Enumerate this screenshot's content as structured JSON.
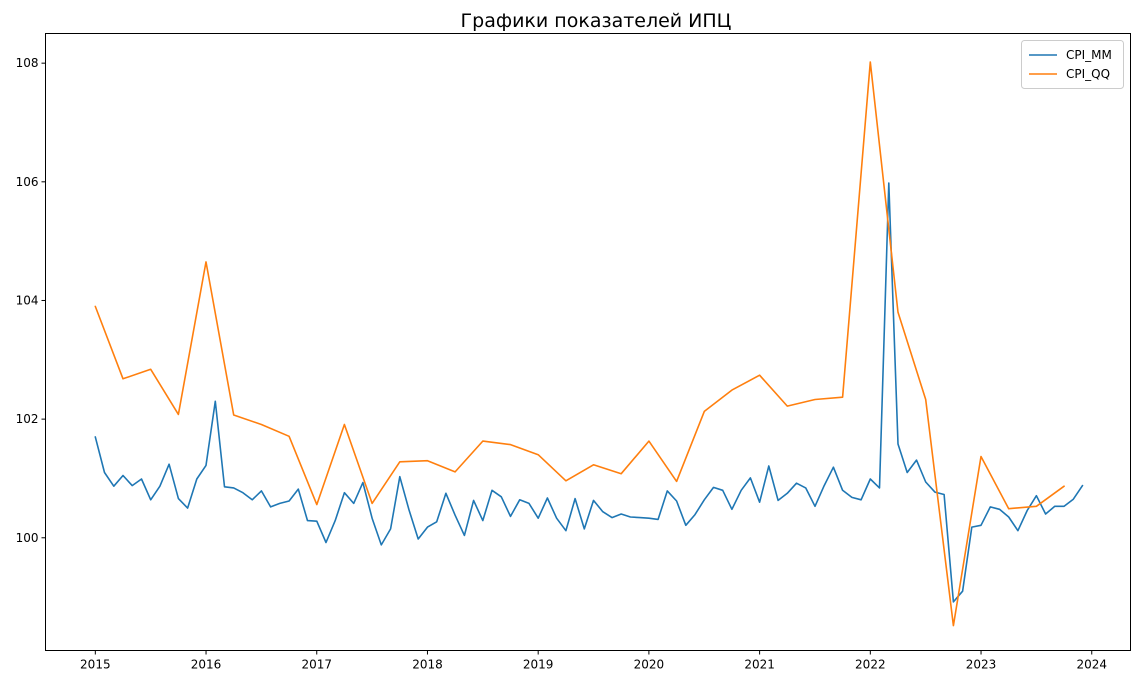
{
  "chart_data": {
    "type": "line",
    "title": "Графики показателей ИПЦ",
    "xlabel": "",
    "ylabel": "",
    "xlim": [
      2014.55,
      2024.35
    ],
    "ylim": [
      98.1,
      108.5
    ],
    "x_ticks": [
      2015,
      2016,
      2017,
      2018,
      2019,
      2020,
      2021,
      2022,
      2023,
      2024
    ],
    "x_tick_labels": [
      "2015",
      "2016",
      "2017",
      "2018",
      "2019",
      "2020",
      "2021",
      "2022",
      "2023",
      "2024"
    ],
    "y_ticks": [
      100,
      102,
      104,
      106,
      108
    ],
    "y_tick_labels": [
      "100",
      "102",
      "104",
      "106",
      "108"
    ],
    "grid": false,
    "legend_position": "top-right",
    "series": [
      {
        "name": "CPI_MM",
        "color": "#1f77b4",
        "x": [
          "2015-01",
          "2015-02",
          "2015-03",
          "2015-04",
          "2015-05",
          "2015-06",
          "2015-07",
          "2015-08",
          "2015-09",
          "2015-10",
          "2015-11",
          "2015-12",
          "2016-01",
          "2016-02",
          "2016-03",
          "2016-04",
          "2016-05",
          "2016-06",
          "2016-07",
          "2016-08",
          "2016-09",
          "2016-10",
          "2016-11",
          "2016-12",
          "2017-01",
          "2017-02",
          "2017-03",
          "2017-04",
          "2017-05",
          "2017-06",
          "2017-07",
          "2017-08",
          "2017-09",
          "2017-10",
          "2017-11",
          "2017-12",
          "2018-01",
          "2018-02",
          "2018-03",
          "2018-04",
          "2018-05",
          "2018-06",
          "2018-07",
          "2018-08",
          "2018-09",
          "2018-10",
          "2018-11",
          "2018-12",
          "2019-01",
          "2019-02",
          "2019-03",
          "2019-04",
          "2019-05",
          "2019-06",
          "2019-07",
          "2019-08",
          "2019-09",
          "2019-10",
          "2019-11",
          "2019-12",
          "2020-01",
          "2020-02",
          "2020-03",
          "2020-04",
          "2020-05",
          "2020-06",
          "2020-07",
          "2020-08",
          "2020-09",
          "2020-10",
          "2020-11",
          "2020-12",
          "2021-01",
          "2021-02",
          "2021-03",
          "2021-04",
          "2021-05",
          "2021-06",
          "2021-07",
          "2021-08",
          "2021-09",
          "2021-10",
          "2021-11",
          "2021-12",
          "2022-01",
          "2022-02",
          "2022-03",
          "2022-04",
          "2022-05",
          "2022-06",
          "2022-07",
          "2022-08",
          "2022-09",
          "2022-10",
          "2022-11",
          "2022-12",
          "2023-01",
          "2023-02",
          "2023-03",
          "2023-04",
          "2023-05",
          "2023-06",
          "2023-07",
          "2023-08",
          "2023-09",
          "2023-10",
          "2023-11",
          "2023-12"
        ],
        "values": [
          101.7,
          101.1,
          100.87,
          101.05,
          100.88,
          100.99,
          100.64,
          100.87,
          101.24,
          100.66,
          100.5,
          100.99,
          101.22,
          102.3,
          100.86,
          100.84,
          100.76,
          100.64,
          100.79,
          100.52,
          100.58,
          100.62,
          100.82,
          100.29,
          100.28,
          99.92,
          100.29,
          100.76,
          100.58,
          100.93,
          100.33,
          99.88,
          100.15,
          101.03,
          100.47,
          99.98,
          100.18,
          100.27,
          100.75,
          100.38,
          100.04,
          100.63,
          100.29,
          100.8,
          100.69,
          100.36,
          100.64,
          100.58,
          100.33,
          100.67,
          100.33,
          100.12,
          100.66,
          100.15,
          100.63,
          100.44,
          100.34,
          100.4,
          100.35,
          100.34,
          100.33,
          100.31,
          100.79,
          100.62,
          100.21,
          100.39,
          100.64,
          100.85,
          100.8,
          100.48,
          100.8,
          101.01,
          100.6,
          101.21,
          100.63,
          100.75,
          100.92,
          100.84,
          100.53,
          100.88,
          101.19,
          100.8,
          100.68,
          100.64,
          100.99,
          100.84,
          105.98,
          101.58,
          101.1,
          101.31,
          100.94,
          100.77,
          100.73,
          98.92,
          99.1,
          100.18,
          100.21,
          100.52,
          100.48,
          100.35,
          100.12,
          100.46,
          100.71,
          100.4,
          100.53,
          100.53,
          100.65,
          100.88
        ]
      },
      {
        "name": "CPI_QQ",
        "color": "#ff7f0e",
        "x": [
          "2015-01",
          "2015-04",
          "2015-07",
          "2015-10",
          "2016-01",
          "2016-04",
          "2016-07",
          "2016-10",
          "2017-01",
          "2017-04",
          "2017-07",
          "2017-10",
          "2018-01",
          "2018-04",
          "2018-07",
          "2018-10",
          "2019-01",
          "2019-04",
          "2019-07",
          "2019-10",
          "2020-01",
          "2020-04",
          "2020-07",
          "2020-10",
          "2021-01",
          "2021-04",
          "2021-07",
          "2021-10",
          "2022-01",
          "2022-04",
          "2022-07",
          "2022-10",
          "2023-01",
          "2023-04",
          "2023-07",
          "2023-10"
        ],
        "values": [
          103.9,
          102.68,
          102.84,
          102.08,
          104.65,
          102.07,
          101.91,
          101.71,
          100.56,
          101.91,
          100.58,
          101.28,
          101.3,
          101.11,
          101.63,
          101.57,
          101.4,
          100.96,
          101.23,
          101.08,
          101.63,
          100.95,
          102.13,
          102.49,
          102.74,
          102.22,
          102.33,
          102.37,
          108.02,
          103.8,
          102.33,
          98.52,
          101.37,
          100.49,
          100.53,
          100.87
        ]
      }
    ]
  }
}
